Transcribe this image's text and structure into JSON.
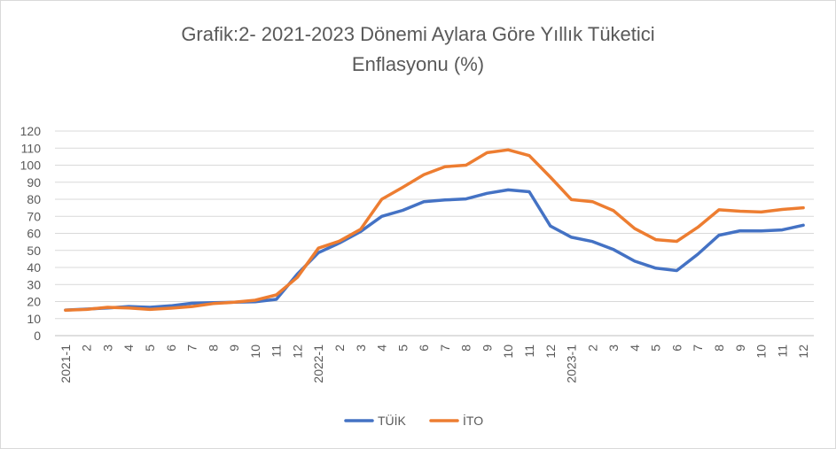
{
  "chart_data": {
    "type": "line",
    "title": "Grafik:2- 2021-2023 Dönemi Aylara Göre Yıllık Tüketici",
    "subtitle": "Enflasyonu (%)",
    "categories": [
      "2021-1",
      "2",
      "3",
      "4",
      "5",
      "6",
      "7",
      "8",
      "9",
      "10",
      "11",
      "12",
      "2022-1",
      "2",
      "3",
      "4",
      "5",
      "6",
      "7",
      "8",
      "9",
      "10",
      "11",
      "12",
      "2023-1",
      "2",
      "3",
      "4",
      "5",
      "6",
      "7",
      "8",
      "9",
      "10",
      "11",
      "12"
    ],
    "yticks": [
      "0",
      "10",
      "20",
      "30",
      "40",
      "50",
      "60",
      "70",
      "80",
      "90",
      "100",
      "110",
      "120"
    ],
    "ylim": [
      0,
      120
    ],
    "grid": true,
    "legend": "bottom",
    "series": [
      {
        "name": "TÜİK",
        "color": "#4472c4",
        "values": [
          15.0,
          15.6,
          16.2,
          17.1,
          16.6,
          17.5,
          19.0,
          19.3,
          19.6,
          19.9,
          21.3,
          36.1,
          48.7,
          54.4,
          61.1,
          70.0,
          73.5,
          78.6,
          79.6,
          80.2,
          83.5,
          85.5,
          84.4,
          64.3,
          57.7,
          55.2,
          50.5,
          43.7,
          39.6,
          38.2,
          47.8,
          58.9,
          61.5,
          61.4,
          62.0,
          64.8
        ]
      },
      {
        "name": "İTO",
        "color": "#ed7d31",
        "values": [
          14.9,
          15.4,
          16.6,
          16.2,
          15.4,
          16.1,
          17.1,
          18.8,
          19.6,
          20.8,
          23.9,
          34.2,
          51.3,
          55.5,
          62.4,
          80.0,
          87.0,
          94.4,
          99.1,
          100.0,
          107.3,
          109.0,
          105.6,
          93.0,
          79.8,
          78.6,
          73.3,
          62.8,
          56.3,
          55.3,
          63.6,
          73.8,
          73.0,
          72.5,
          74.0,
          75.0
        ]
      }
    ]
  }
}
